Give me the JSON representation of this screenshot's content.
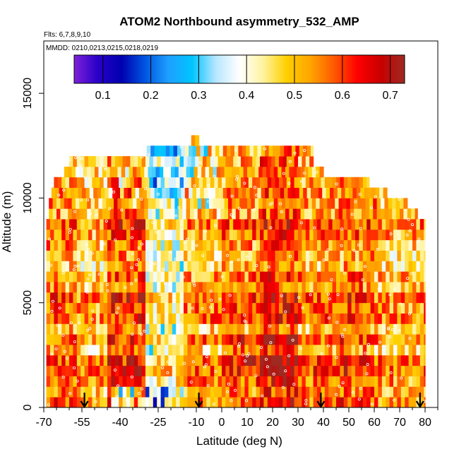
{
  "chart_data": {
    "type": "heatmap",
    "title": "ATOM2 Northbound asymmetry_532_AMP",
    "flights_label": "Flts: 6,7,8,9,10",
    "dates_label": "MMDD: 0210,0213,0215,0218,0219",
    "xlabel": "Latitude (deg N)",
    "ylabel": "Altitude (m)",
    "xlim": [
      -70,
      85
    ],
    "ylim": [
      0,
      17500
    ],
    "x_ticks": [
      -70,
      -55,
      -40,
      -25,
      -10,
      0,
      10,
      20,
      30,
      40,
      50,
      60,
      70,
      80
    ],
    "x_minor_ticks": [
      -65,
      -60,
      -50,
      -45,
      -35,
      -30,
      -20,
      -15,
      -5,
      5,
      15,
      25,
      35,
      45,
      55,
      65,
      75,
      85
    ],
    "y_ticks": [
      0,
      5000,
      10000,
      15000
    ],
    "colorbar": {
      "range": [
        0.04,
        0.73
      ],
      "tick_values": [
        0.1,
        0.2,
        0.3,
        0.4,
        0.5,
        0.6,
        0.7
      ],
      "tick_labels": [
        "0.1",
        "0.2",
        "0.3",
        "0.4",
        "0.5",
        "0.6",
        "0.7"
      ],
      "colors": [
        "#7e21d8",
        "#2a00c8",
        "#0000b0",
        "#0055e0",
        "#1ea0ff",
        "#00c4ff",
        "#b8e6ff",
        "#ffffff",
        "#fff3a0",
        "#ffd000",
        "#ffa500",
        "#ff5a00",
        "#ff0000",
        "#c80000",
        "#9e2a22"
      ]
    },
    "flight_arrow_latitudes": [
      -54,
      -9,
      39,
      78
    ],
    "altitude_profile": [
      {
        "alt": 500,
        "lat_min": -69,
        "lat_max": 80
      },
      {
        "alt": 1000,
        "lat_min": -69,
        "lat_max": 80
      },
      {
        "alt": 1500,
        "lat_min": -69,
        "lat_max": 80
      },
      {
        "alt": 2000,
        "lat_min": -69,
        "lat_max": 80
      },
      {
        "alt": 2500,
        "lat_min": -69,
        "lat_max": 80
      },
      {
        "alt": 3000,
        "lat_min": -69,
        "lat_max": 80
      },
      {
        "alt": 3500,
        "lat_min": -69,
        "lat_max": 80
      },
      {
        "alt": 4000,
        "lat_min": -69,
        "lat_max": 80
      },
      {
        "alt": 4500,
        "lat_min": -69,
        "lat_max": 80
      },
      {
        "alt": 5000,
        "lat_min": -69,
        "lat_max": 80
      },
      {
        "alt": 5500,
        "lat_min": -69,
        "lat_max": 80
      },
      {
        "alt": 6000,
        "lat_min": -69,
        "lat_max": 80
      },
      {
        "alt": 6500,
        "lat_min": -69,
        "lat_max": 80
      },
      {
        "alt": 7000,
        "lat_min": -69,
        "lat_max": 80
      },
      {
        "alt": 7500,
        "lat_min": -69,
        "lat_max": 80
      },
      {
        "alt": 8000,
        "lat_min": -69,
        "lat_max": 80
      },
      {
        "alt": 8500,
        "lat_min": -69,
        "lat_max": 80
      },
      {
        "alt": 9000,
        "lat_min": -69,
        "lat_max": 80
      },
      {
        "alt": 9500,
        "lat_min": -68,
        "lat_max": 77
      },
      {
        "alt": 10000,
        "lat_min": -68,
        "lat_max": 73
      },
      {
        "alt": 10500,
        "lat_min": -67,
        "lat_max": 65
      },
      {
        "alt": 11000,
        "lat_min": -66,
        "lat_max": 58
      },
      {
        "alt": 11500,
        "lat_min": -62,
        "lat_max": 40
      },
      {
        "alt": 12000,
        "lat_min": -60,
        "lat_max": 36
      },
      {
        "alt": 12500,
        "lat_min": -31,
        "lat_max": 36
      },
      {
        "alt": 13000,
        "lat_min": -12,
        "lat_max": -9
      }
    ],
    "latitude_bands": [
      {
        "lat_min": -69,
        "lat_max": -58,
        "value": 0.56
      },
      {
        "lat_min": -58,
        "lat_max": -45,
        "value": 0.51
      },
      {
        "lat_min": -45,
        "lat_max": -30,
        "value": 0.6
      },
      {
        "lat_min": -30,
        "lat_max": -15,
        "value": 0.43
      },
      {
        "lat_min": -15,
        "lat_max": 0,
        "value": 0.53
      },
      {
        "lat_min": 0,
        "lat_max": 15,
        "value": 0.56
      },
      {
        "lat_min": 15,
        "lat_max": 30,
        "value": 0.62
      },
      {
        "lat_min": 30,
        "lat_max": 45,
        "value": 0.55
      },
      {
        "lat_min": 45,
        "lat_max": 60,
        "value": 0.58
      },
      {
        "lat_min": 60,
        "lat_max": 80,
        "value": 0.52
      }
    ]
  }
}
